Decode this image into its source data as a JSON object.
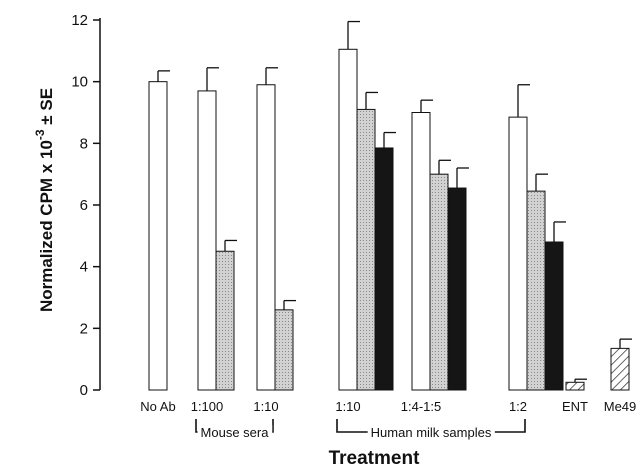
{
  "chart_data": {
    "type": "bar",
    "xlabel": "Treatment",
    "ylabel_main": "Normalized CPM x 10",
    "ylabel_exponent": "-3",
    "ylabel_suffix": " ± SE",
    "ylim": [
      0,
      12
    ],
    "yticks": [
      0,
      2,
      4,
      6,
      8,
      10,
      12
    ],
    "grid": false,
    "legend": "none",
    "groups": [
      {
        "label": "No Ab",
        "bars": [
          {
            "value": 10.0,
            "error": 0.35,
            "fill": "white"
          }
        ]
      },
      {
        "label": "1:100",
        "bars": [
          {
            "value": 9.7,
            "error": 0.75,
            "fill": "white"
          },
          {
            "value": 4.5,
            "error": 0.35,
            "fill": "gray"
          }
        ]
      },
      {
        "label": "1:10",
        "bars": [
          {
            "value": 9.9,
            "error": 0.55,
            "fill": "white"
          },
          {
            "value": 2.6,
            "error": 0.3,
            "fill": "gray"
          }
        ]
      },
      {
        "label": "1:10",
        "bars": [
          {
            "value": 11.05,
            "error": 0.9,
            "fill": "white"
          },
          {
            "value": 9.1,
            "error": 0.55,
            "fill": "gray"
          },
          {
            "value": 7.85,
            "error": 0.5,
            "fill": "black"
          }
        ]
      },
      {
        "label": "1:4-1:5",
        "bars": [
          {
            "value": 9.0,
            "error": 0.4,
            "fill": "white"
          },
          {
            "value": 7.0,
            "error": 0.45,
            "fill": "gray"
          },
          {
            "value": 6.55,
            "error": 0.65,
            "fill": "black"
          }
        ]
      },
      {
        "label": "1:2",
        "bars": [
          {
            "value": 8.85,
            "error": 1.05,
            "fill": "white"
          },
          {
            "value": 6.45,
            "error": 0.55,
            "fill": "gray"
          },
          {
            "value": 4.8,
            "error": 0.65,
            "fill": "black"
          }
        ]
      },
      {
        "label": "ENT",
        "bars": [
          {
            "value": 0.25,
            "error": 0.1,
            "fill": "hatched"
          }
        ]
      },
      {
        "label": "Me49",
        "bars": [
          {
            "value": 1.35,
            "error": 0.3,
            "fill": "hatched"
          }
        ]
      }
    ],
    "brackets": [
      {
        "label": "Mouse sera",
        "from_group": 1,
        "to_group": 2
      },
      {
        "label": "Human milk samples",
        "from_group": 3,
        "to_group": 5
      }
    ]
  },
  "colors": {
    "white_fill": "#ffffff",
    "gray_fill": "#c9c9c9",
    "black_fill": "#151515",
    "axis": "#111111"
  }
}
